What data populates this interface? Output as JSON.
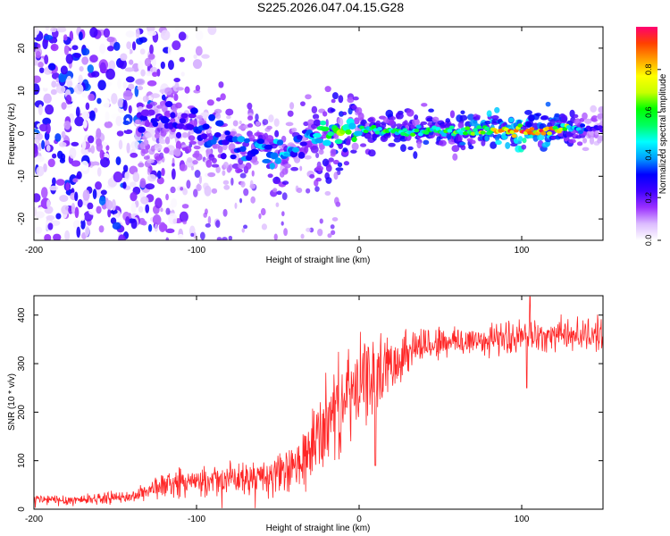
{
  "title": "S225.2026.047.04.15.G28",
  "chart_data": [
    {
      "type": "heatmap",
      "xlabel": "Height of straight line (km)",
      "ylabel": "Frequency (Hz)",
      "xlim": [
        -200,
        150
      ],
      "ylim": [
        -25,
        25
      ],
      "xticks": [
        -200,
        -100,
        0,
        100
      ],
      "yticks": [
        -20,
        -10,
        0,
        10,
        20
      ],
      "colorbar": {
        "label": "Normalized spectral amplitude",
        "range": [
          0,
          1
        ],
        "ticks": [
          "0.0",
          "0.2",
          "0.4",
          "0.6",
          "0.8"
        ],
        "colors": [
          "#ffffff",
          "#dcbcff",
          "#9b30ff",
          "#3f00ff",
          "#0000ff",
          "#00a0ff",
          "#00ffff",
          "#00ff60",
          "#00ff00",
          "#c8ff00",
          "#ffff00",
          "#ffa000",
          "#ff4000",
          "#ff0070"
        ]
      },
      "ridge": {
        "x": [
          -130,
          -115,
          -100,
          -90,
          -80,
          -70,
          -60,
          -50,
          -45,
          -40,
          -35,
          -30,
          -25,
          -20,
          -15,
          -10,
          -5,
          0,
          5,
          10,
          20,
          40,
          60,
          80,
          100,
          120,
          140,
          150
        ],
        "frequency_hz": [
          3,
          2.5,
          1.5,
          -1,
          -2,
          -3,
          -4,
          -4.5,
          -5,
          -3,
          -2,
          -1,
          -0.5,
          0,
          0.5,
          1,
          1.2,
          1.5,
          1,
          0.8,
          0.6,
          0.5,
          0.5,
          0.6,
          0.7,
          0.9,
          1.2,
          1.5
        ],
        "amplitude": [
          0.25,
          0.3,
          0.3,
          0.35,
          0.35,
          0.4,
          0.4,
          0.45,
          0.45,
          0.4,
          0.35,
          0.4,
          0.5,
          0.55,
          0.6,
          0.65,
          0.6,
          0.5,
          0.55,
          0.6,
          0.6,
          0.6,
          0.65,
          0.8,
          0.95,
          0.85,
          0.3,
          0.25
        ]
      },
      "noise_region_x": [
        -200,
        -130
      ]
    },
    {
      "type": "line",
      "xlabel": "Height of straight line (km)",
      "ylabel": "SNR (10 * v/v)",
      "xlim": [
        -200,
        150
      ],
      "ylim": [
        0,
        440
      ],
      "xticks": [
        -200,
        -100,
        0,
        100
      ],
      "yticks": [
        0,
        100,
        200,
        300,
        400
      ],
      "color": "#ff0000",
      "series": [
        {
          "name": "SNR",
          "x": [
            -200,
            -180,
            -160,
            -140,
            -125,
            -110,
            -100,
            -90,
            -80,
            -70,
            -60,
            -50,
            -40,
            -30,
            -20,
            -10,
            0,
            10,
            20,
            30,
            40,
            60,
            80,
            100,
            120,
            150
          ],
          "y": [
            20,
            18,
            22,
            25,
            45,
            55,
            55,
            58,
            62,
            62,
            65,
            70,
            80,
            120,
            180,
            220,
            250,
            280,
            300,
            330,
            340,
            345,
            350,
            355,
            360,
            360
          ],
          "spread": [
            12,
            12,
            12,
            12,
            25,
            30,
            30,
            30,
            35,
            35,
            40,
            45,
            55,
            80,
            100,
            100,
            100,
            80,
            60,
            50,
            40,
            35,
            35,
            35,
            35,
            35
          ]
        }
      ]
    }
  ]
}
